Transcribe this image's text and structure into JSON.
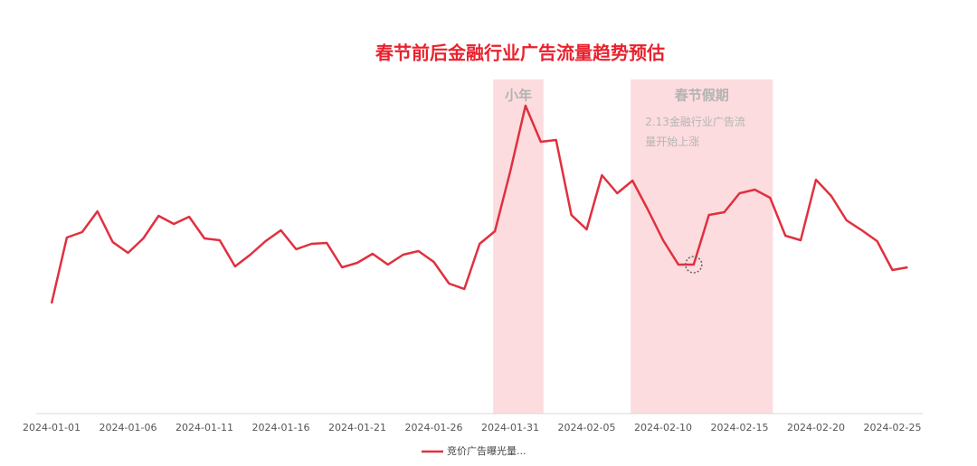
{
  "chart_data": {
    "type": "line",
    "title": "春节前后金融行业广告流量趋势预估",
    "x": [
      "2024-01-01",
      "2024-01-02",
      "2024-01-03",
      "2024-01-04",
      "2024-01-05",
      "2024-01-06",
      "2024-01-07",
      "2024-01-08",
      "2024-01-09",
      "2024-01-10",
      "2024-01-11",
      "2024-01-12",
      "2024-01-13",
      "2024-01-14",
      "2024-01-15",
      "2024-01-16",
      "2024-01-17",
      "2024-01-18",
      "2024-01-19",
      "2024-01-20",
      "2024-01-21",
      "2024-01-22",
      "2024-01-23",
      "2024-01-24",
      "2024-01-25",
      "2024-01-26",
      "2024-01-27",
      "2024-01-28",
      "2024-01-29",
      "2024-01-30",
      "2024-01-31",
      "2024-02-01",
      "2024-02-02",
      "2024-02-03",
      "2024-02-04",
      "2024-02-05",
      "2024-02-06",
      "2024-02-07",
      "2024-02-08",
      "2024-02-09",
      "2024-02-10",
      "2024-02-11",
      "2024-02-12",
      "2024-02-13",
      "2024-02-14",
      "2024-02-15",
      "2024-02-16",
      "2024-02-17",
      "2024-02-18",
      "2024-02-19",
      "2024-02-20",
      "2024-02-21",
      "2024-02-22",
      "2024-02-23",
      "2024-02-24",
      "2024-02-25",
      "2024-02-26"
    ],
    "series": [
      {
        "name": "竞价广告曝光量...",
        "color": "#e0303f",
        "values": [
          122,
          195,
          201,
          224,
          190,
          178,
          194,
          219,
          210,
          218,
          194,
          192,
          163,
          176,
          191,
          203,
          182,
          188,
          189,
          162,
          167,
          177,
          165,
          176,
          180,
          168,
          144,
          138,
          188,
          202,
          268,
          341,
          301,
          303,
          220,
          204,
          264,
          244,
          258,
          226,
          192,
          165,
          165,
          220,
          223,
          244,
          248,
          239,
          197,
          192,
          259,
          241,
          214,
          203,
          191,
          159,
          162
        ]
      }
    ],
    "ylim": [
      0,
      370
    ],
    "bands": [
      {
        "label": "小年",
        "start": "2024-01-30",
        "end": "2024-02-02",
        "color": "#fbd6d8"
      },
      {
        "label": "春节假期",
        "start": "2024-02-08",
        "end": "2024-02-17",
        "color": "#fbd6d8",
        "note": "2.13金融行业广告流量开始上涨"
      }
    ],
    "legend": "bottom"
  }
}
